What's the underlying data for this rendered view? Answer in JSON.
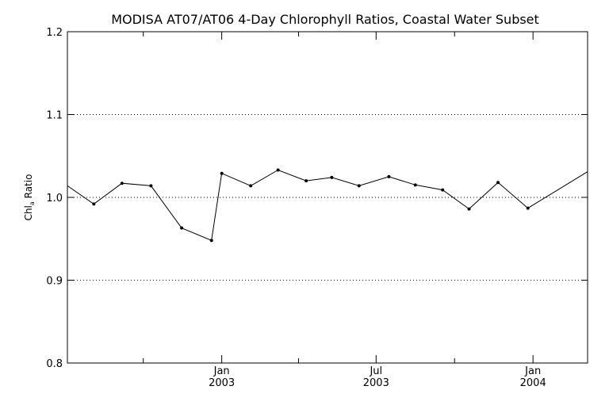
{
  "chart_data": {
    "type": "line",
    "title": "MODISA AT07/AT06 4-Day Chlorophyll Ratios, Coastal Water Subset",
    "ylabel": {
      "prefix": "Chl",
      "subscript": "a",
      "suffix": " Ratio"
    },
    "xlabel": "",
    "ylim": [
      0.8,
      1.2
    ],
    "yticks": [
      0.8,
      0.9,
      1.0,
      1.1,
      1.2
    ],
    "ytick_labels": [
      "0.8",
      "0.9",
      "1.0",
      "1.1",
      "1.2"
    ],
    "grid_y": [
      0.9,
      1.0,
      1.1
    ],
    "grid": "dotted horizontal at 0.9, 1.0, 1.1",
    "xlim": [
      "2002-07-04",
      "2004-03-05"
    ],
    "xtick_labels": [
      {
        "date": "2003-01-01",
        "line1": "Jan",
        "line2": "2003"
      },
      {
        "date": "2003-07-01",
        "line1": "Jul",
        "line2": "2003"
      },
      {
        "date": "2004-01-01",
        "line1": "Jan",
        "line2": "2004"
      }
    ],
    "minor_ticks": [
      "2002-10-01",
      "2003-04-01",
      "2003-10-01"
    ],
    "series": [
      {
        "x": [
          "2002-07-04",
          "2002-08-04",
          "2002-09-06",
          "2002-10-10",
          "2002-11-15",
          "2002-12-20",
          "2003-01-01",
          "2003-02-04",
          "2003-03-08",
          "2003-04-10",
          "2003-05-10",
          "2003-06-11",
          "2003-07-16",
          "2003-08-16",
          "2003-09-17",
          "2003-10-18",
          "2003-11-21",
          "2003-12-26",
          "2004-03-05"
        ],
        "y": [
          1.014,
          0.992,
          1.017,
          1.014,
          0.963,
          0.948,
          1.029,
          1.014,
          1.033,
          1.02,
          1.024,
          1.014,
          1.025,
          1.015,
          1.009,
          0.986,
          1.018,
          0.987,
          1.031
        ]
      }
    ]
  }
}
